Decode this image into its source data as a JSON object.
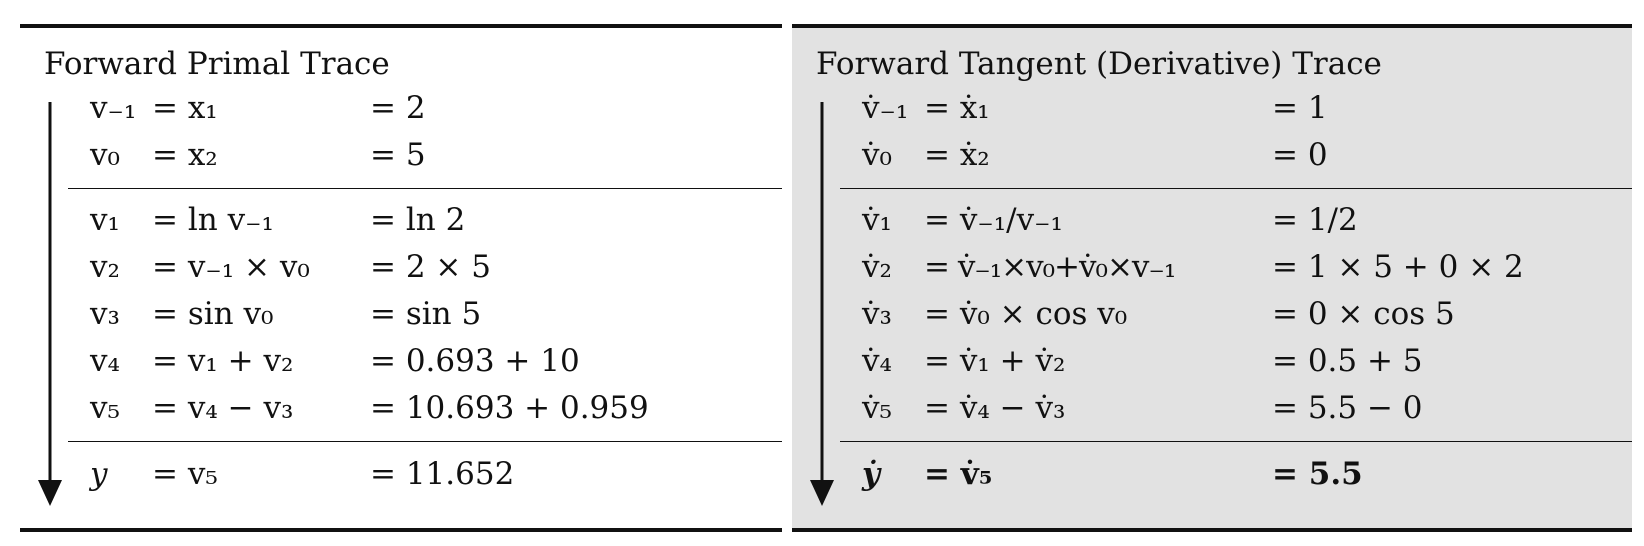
{
  "primal": {
    "title": "Forward Primal Trace",
    "input_rows": [
      {
        "var": "v₋₁",
        "expr": "= x₁",
        "value": "= 2"
      },
      {
        "var": "v₀",
        "expr": "= x₂",
        "value": "= 5"
      }
    ],
    "intermediate_rows": [
      {
        "var": "v₁",
        "expr": "= ln v₋₁",
        "value": "= ln 2"
      },
      {
        "var": "v₂",
        "expr": "= v₋₁ × v₀",
        "value": "= 2 × 5"
      },
      {
        "var": "v₃",
        "expr": "= sin v₀",
        "value": "= sin 5"
      },
      {
        "var": "v₄",
        "expr": "= v₁ + v₂",
        "value": "= 0.693 + 10"
      },
      {
        "var": "v₅",
        "expr": "= v₄ − v₃",
        "value": "= 10.693 + 0.959"
      }
    ],
    "output_row": {
      "var": "y",
      "expr": "= v₅",
      "value": "= 11.652"
    }
  },
  "tangent": {
    "title": "Forward Tangent (Derivative) Trace",
    "input_rows": [
      {
        "var": "v̇₋₁",
        "expr": "= ẋ₁",
        "value": "= 1"
      },
      {
        "var": "v̇₀",
        "expr": "= ẋ₂",
        "value": "= 0"
      }
    ],
    "intermediate_rows": [
      {
        "var": "v̇₁",
        "expr": "= v̇₋₁/v₋₁",
        "value": "= 1/2"
      },
      {
        "var": "v̇₂",
        "expr": "= v̇₋₁×v₀+v̇₀×v₋₁",
        "value": "= 1 × 5 + 0 × 2"
      },
      {
        "var": "v̇₃",
        "expr": "= v̇₀ × cos v₀",
        "value": "= 0 × cos 5"
      },
      {
        "var": "v̇₄",
        "expr": "= v̇₁ + v̇₂",
        "value": "= 0.5 + 5"
      },
      {
        "var": "v̇₅",
        "expr": "= v̇₄ − v̇₃",
        "value": "= 5.5 − 0"
      }
    ],
    "output_row": {
      "var": "ẏ",
      "expr": "= v̇₅",
      "value": "= 5.5"
    }
  }
}
